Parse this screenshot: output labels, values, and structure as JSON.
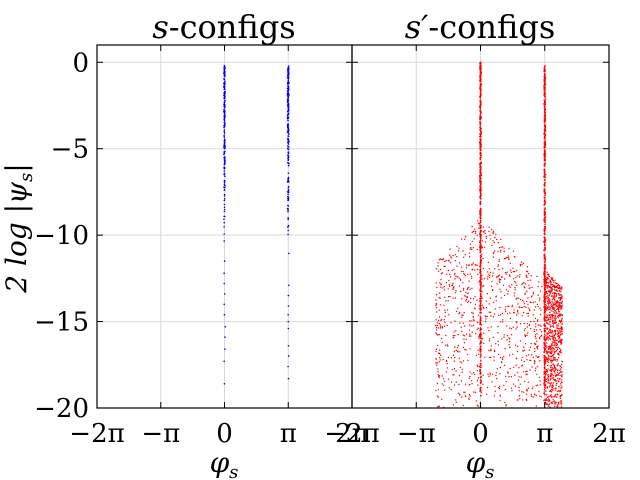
{
  "chart_data": [
    {
      "type": "scatter",
      "title": "s-configs",
      "title_parts": {
        "var": "s",
        "rest": "-configs"
      },
      "xlabel": "φs",
      "xlabel_parts": {
        "base": "φ",
        "sub": "s"
      },
      "ylabel": "2 log |ψs|",
      "ylabel_parts": {
        "prefix": "2 log |",
        "var": "ψ",
        "sub": "s",
        "suffix": "|"
      },
      "xlim": [
        -6.2832,
        6.2832
      ],
      "ylim": [
        -20,
        1
      ],
      "xticks": [
        -6.2832,
        -3.1416,
        0,
        3.1416,
        6.2832
      ],
      "xtick_labels": [
        "−2π",
        "−π",
        "0",
        "π",
        "2π"
      ],
      "yticks": [
        0,
        -5,
        -10,
        -15,
        -20
      ],
      "ytick_labels": [
        "0",
        "−5",
        "−10",
        "−15",
        "−20"
      ],
      "grid": true,
      "color": "#0000ff",
      "series": [
        {
          "x_center": 0,
          "x_spread": 0.04,
          "dense_y_range": [
            -11,
            -0.2
          ],
          "sparse_y_values": [
            -11.5,
            -12.2,
            -12.8,
            -13.4,
            -14.0,
            -14.6,
            -15.3,
            -15.9,
            -16.6,
            -17.3,
            -18.6,
            -0.2
          ]
        },
        {
          "x_center": 3.1416,
          "x_spread": 0.05,
          "dense_y_range": [
            -12.5,
            -0.2
          ],
          "sparse_y_values": [
            -12.9,
            -13.5,
            -14.1,
            -14.6,
            -15.0,
            -15.4,
            -16.4,
            -17.0,
            -17.6,
            -18.3
          ]
        }
      ]
    },
    {
      "type": "scatter",
      "title": "s′-configs",
      "title_parts": {
        "var": "s′",
        "rest": "-configs"
      },
      "xlabel": "φs",
      "xlabel_parts": {
        "base": "φ",
        "sub": "s"
      },
      "xlim": [
        -6.2832,
        6.2832
      ],
      "ylim": [
        -20,
        1
      ],
      "xticks": [
        -6.2832,
        -3.1416,
        0,
        3.1416,
        6.2832
      ],
      "xtick_labels": [
        "−2π",
        "−π",
        "0",
        "π",
        "2π"
      ],
      "yticks": [
        0,
        -5,
        -10,
        -15,
        -20
      ],
      "grid": true,
      "color": "#ff0000",
      "series": [
        {
          "x_center": 0,
          "x_spread": 0.05,
          "dense_y_range": [
            -20,
            0
          ],
          "cloud_x_range": [
            -2.2,
            3.0
          ],
          "cloud_y_range": [
            -20,
            -9
          ]
        },
        {
          "x_center": 3.1416,
          "x_spread": 0.05,
          "dense_y_range": [
            -20,
            -0.2
          ],
          "cloud_x_range": [
            3.1,
            4.0
          ],
          "cloud_y_range": [
            -20,
            -12
          ]
        }
      ]
    }
  ]
}
